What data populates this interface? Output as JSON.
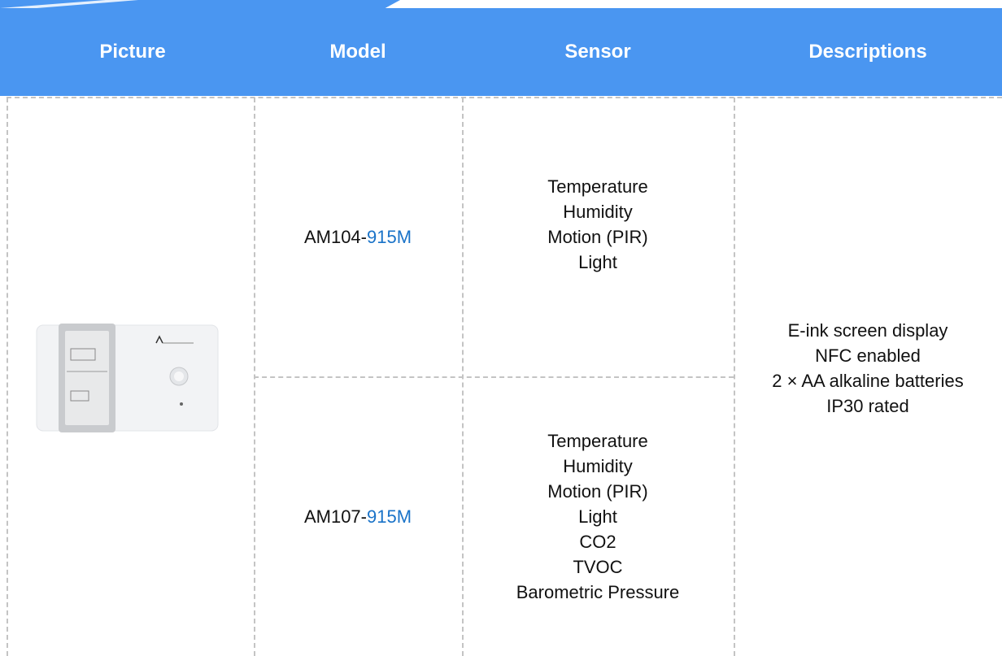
{
  "table": {
    "headers": [
      "Picture",
      "Model",
      "Sensor",
      "Descriptions"
    ],
    "rows": [
      {
        "model": {
          "base": "AM104-",
          "frequency": "915M"
        },
        "sensors": [
          "Temperature",
          "Humidity",
          "Motion (PIR)",
          "Light"
        ]
      },
      {
        "model": {
          "base": "AM107-",
          "frequency": "915M"
        },
        "sensors": [
          "Temperature",
          "Humidity",
          "Motion (PIR)",
          "Light",
          "CO2",
          "TVOC",
          "Barometric Pressure"
        ]
      }
    ],
    "descriptions": [
      "E-ink screen display",
      "NFC enabled",
      "2 × AA alkaline batteries",
      "IP30 rated"
    ]
  }
}
